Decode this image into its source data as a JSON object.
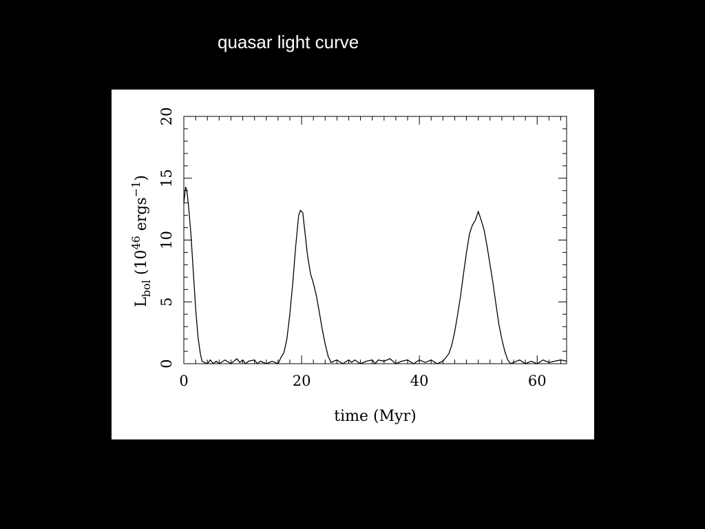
{
  "slide": {
    "title": "quasar light curve"
  },
  "colors": {
    "background": "#000000",
    "title_text": "#ffffff",
    "panel": "#ffffff",
    "line": "#000000"
  },
  "chart_data": {
    "type": "line",
    "title": "",
    "xlabel": "time (Myr)",
    "ylabel": {
      "main": "L",
      "subscript": "bol",
      "units_open": "(10",
      "exponent": "46",
      "units_mid": "ergs",
      "units_exponent": "−1",
      "units_close": ")"
    },
    "xlim": [
      0,
      65
    ],
    "ylim": [
      0,
      20
    ],
    "xticks": [
      0,
      20,
      40,
      60
    ],
    "yticks": [
      0,
      5,
      10,
      15,
      20
    ],
    "xtick_labels": [
      "0",
      "20",
      "40",
      "60"
    ],
    "ytick_labels": [
      "0",
      "5",
      "10",
      "15",
      "20"
    ],
    "grid": false,
    "legend": "none",
    "series": [
      {
        "x": [
          0,
          0.3,
          0.5,
          0.8,
          1.2,
          1.6,
          2.0,
          2.4,
          2.8,
          3.1,
          3.5,
          4.0,
          4.5,
          5.0,
          5.5,
          6.0,
          7.0,
          8.0,
          9.0,
          9.5,
          10.0,
          10.5,
          11.0,
          12.0,
          12.5,
          13.0,
          14.0,
          15.0,
          16.0,
          16.5,
          17.0,
          17.5,
          18.0,
          18.5,
          19.0,
          19.5,
          19.8,
          20.2,
          20.6,
          21.0,
          21.5,
          22.0,
          22.5,
          23.0,
          23.5,
          24.0,
          24.5,
          25.0,
          25.5,
          26.0,
          27.0,
          28.0,
          28.5,
          29.0,
          30.0,
          31.0,
          32.0,
          32.5,
          33.0,
          34.0,
          35.0,
          36.0,
          37.0,
          38.0,
          39.0,
          40.0,
          41.0,
          42.0,
          43.0,
          44.0,
          45.0,
          45.5,
          46.0,
          46.5,
          47.0,
          47.5,
          48.0,
          48.5,
          49.0,
          49.5,
          50.0,
          50.5,
          51.0,
          51.5,
          52.0,
          52.5,
          53.0,
          53.5,
          54.0,
          54.5,
          55.0,
          55.5,
          56.0,
          57.0,
          58.0,
          59.0,
          60.0,
          61.0,
          62.0,
          63.0,
          64.0,
          65.0
        ],
        "y": [
          13.0,
          14.3,
          14.0,
          12.8,
          10.5,
          7.5,
          4.5,
          2.2,
          0.8,
          0.2,
          0.1,
          0.0,
          0.3,
          0.0,
          0.2,
          0.0,
          0.3,
          0.0,
          0.4,
          0.1,
          0.3,
          0.0,
          0.2,
          0.3,
          0.0,
          0.2,
          0.0,
          0.2,
          0.0,
          0.5,
          0.9,
          2.0,
          4.0,
          6.5,
          9.5,
          12.0,
          12.4,
          12.2,
          10.5,
          8.8,
          7.3,
          6.5,
          5.5,
          4.2,
          2.8,
          1.6,
          0.6,
          0.1,
          0.2,
          0.3,
          0.0,
          0.3,
          0.1,
          0.3,
          0.0,
          0.2,
          0.3,
          0.0,
          0.3,
          0.2,
          0.4,
          0.0,
          0.2,
          0.3,
          0.0,
          0.3,
          0.1,
          0.3,
          0.0,
          0.2,
          0.8,
          1.5,
          2.6,
          4.0,
          5.5,
          7.3,
          9.0,
          10.5,
          11.2,
          11.6,
          12.3,
          11.6,
          10.8,
          9.5,
          8.0,
          6.5,
          4.8,
          3.2,
          2.0,
          1.0,
          0.3,
          0.0,
          0.1,
          0.3,
          0.0,
          0.2,
          0.0,
          0.3,
          0.1,
          0.2,
          0.3,
          0.2
        ]
      }
    ]
  }
}
